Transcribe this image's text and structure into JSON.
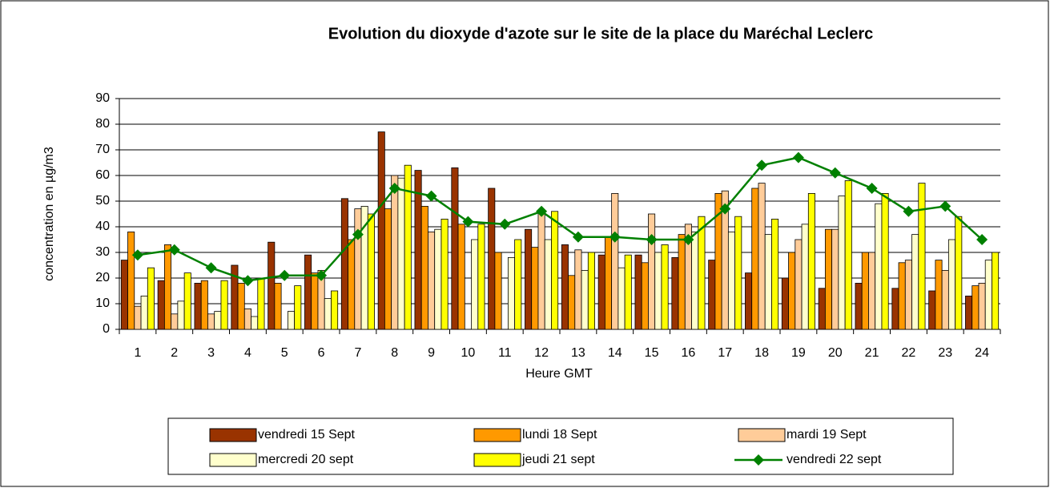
{
  "chart_data": {
    "type": "bar",
    "title": "Evolution du dioxyde d'azote sur le site de la place du Maréchal Leclerc",
    "xlabel": "Heure GMT",
    "ylabel": "concentration en µg/m3",
    "categories": [
      "1",
      "2",
      "3",
      "4",
      "5",
      "6",
      "7",
      "8",
      "9",
      "10",
      "11",
      "12",
      "13",
      "14",
      "15",
      "16",
      "17",
      "18",
      "19",
      "20",
      "21",
      "22",
      "23",
      "24"
    ],
    "ylim": [
      0,
      90
    ],
    "yticks": [
      0,
      10,
      20,
      30,
      40,
      50,
      60,
      70,
      80,
      90
    ],
    "grid": true,
    "legend": "bottom",
    "series": [
      {
        "name": "vendredi 15 Sept",
        "type": "bar",
        "color": "#993300",
        "values": [
          27,
          19,
          18,
          25,
          34,
          29,
          51,
          77,
          62,
          63,
          55,
          39,
          33,
          29,
          29,
          28,
          27,
          22,
          20,
          16,
          18,
          16,
          15,
          13
        ]
      },
      {
        "name": "lundi 18 Sept",
        "type": "bar",
        "color": "#ff9900",
        "values": [
          38,
          33,
          19,
          18,
          18,
          22,
          35,
          47,
          48,
          41,
          30,
          32,
          21,
          36,
          26,
          37,
          53,
          55,
          30,
          39,
          30,
          26,
          27,
          17
        ]
      },
      {
        "name": "mardi 19 Sept",
        "type": "bar",
        "color": "#ffcc99",
        "values": [
          9,
          6,
          6,
          8,
          0,
          23,
          47,
          60,
          38,
          0,
          0,
          46,
          31,
          53,
          45,
          41,
          54,
          57,
          35,
          39,
          30,
          27,
          23,
          18
        ]
      },
      {
        "name": "mercredi 20 sept",
        "type": "bar",
        "color": "#ffffcc",
        "values": [
          13,
          11,
          7,
          5,
          7,
          12,
          48,
          59,
          39,
          35,
          28,
          35,
          23,
          24,
          30,
          38,
          38,
          37,
          41,
          52,
          49,
          37,
          35,
          27
        ]
      },
      {
        "name": "jeudi 21 sept",
        "type": "bar",
        "color": "#ffff00",
        "values": [
          24,
          22,
          19,
          20,
          17,
          15,
          45,
          64,
          43,
          41,
          35,
          46,
          30,
          29,
          33,
          44,
          44,
          43,
          53,
          58,
          53,
          57,
          44,
          30
        ]
      },
      {
        "name": "vendredi 22 sept",
        "type": "line",
        "color": "#008000",
        "values": [
          29,
          31,
          24,
          19,
          21,
          21,
          37,
          55,
          52,
          42,
          41,
          46,
          36,
          36,
          35,
          35,
          47,
          64,
          67,
          61,
          55,
          46,
          48,
          35
        ]
      }
    ]
  }
}
